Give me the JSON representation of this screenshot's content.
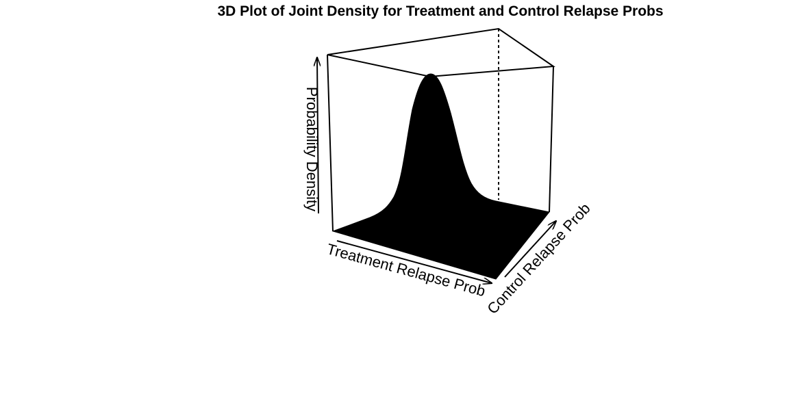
{
  "chart_data": {
    "type": "surface3d",
    "title": "3D Plot of Joint Density for Treatment and Control Relapse Probs",
    "xlabel": "Treatment Relapse Prob",
    "ylabel": "Control Relapse Prob",
    "zlabel": "Probability Density",
    "surface": "single peaked joint density (bell-shaped), filled black",
    "box": true,
    "axes_ticks": false,
    "colors": {
      "surface": "#000000",
      "box": "#000000",
      "background": "#ffffff"
    }
  }
}
